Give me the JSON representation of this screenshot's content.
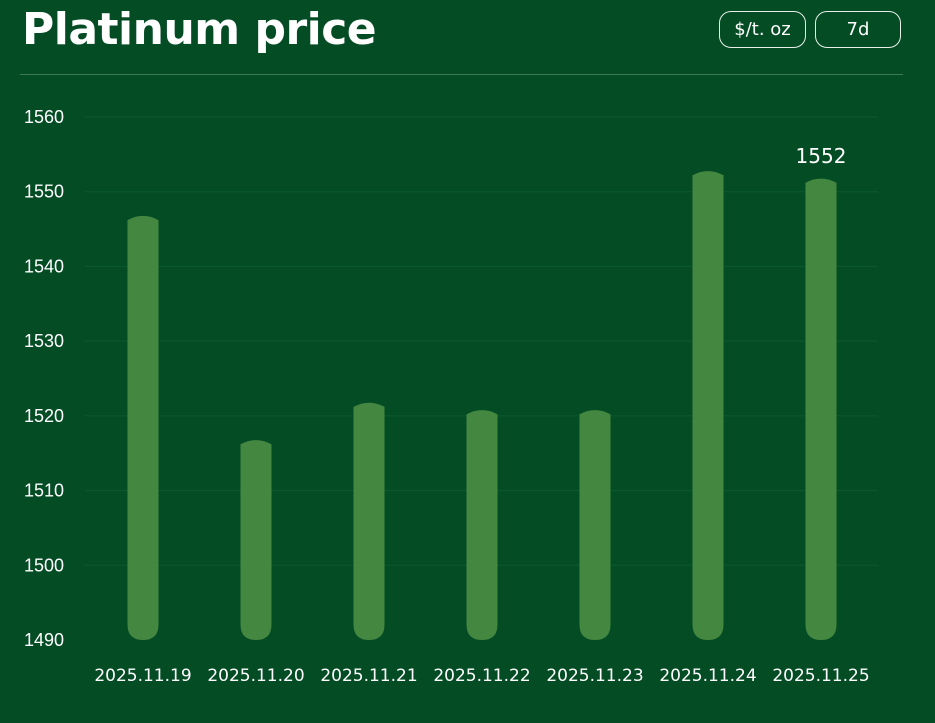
{
  "header": {
    "title": "Platinum price",
    "unit_button": "$/t. oz",
    "range_button": "7d"
  },
  "colors": {
    "background": "#034c24",
    "bar": "#448741",
    "text": "#ffffff",
    "grid": "#0d5a2f"
  },
  "chart_data": {
    "type": "bar",
    "title": "Platinum price",
    "xlabel": "",
    "ylabel": "",
    "categories": [
      "2025.11.19",
      "2025.11.20",
      "2025.11.21",
      "2025.11.22",
      "2025.11.23",
      "2025.11.24",
      "2025.11.25"
    ],
    "values": [
      1547,
      1517,
      1522,
      1521,
      1521,
      1553,
      1552
    ],
    "ylim": [
      1490,
      1560
    ],
    "yticks": [
      1490,
      1500,
      1510,
      1520,
      1530,
      1540,
      1550,
      1560
    ],
    "data_labels": [
      {
        "category": "2025.11.25",
        "text": "1552"
      }
    ],
    "grid": true,
    "legend": "none"
  }
}
